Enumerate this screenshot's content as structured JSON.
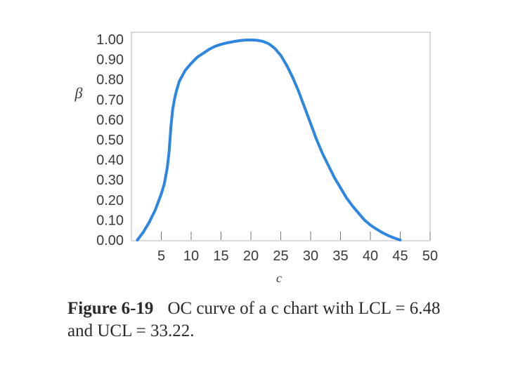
{
  "chart_data": {
    "type": "line",
    "title": "",
    "xlabel": "c",
    "ylabel": "β",
    "xlim": [
      0,
      50
    ],
    "ylim": [
      0,
      1
    ],
    "grid": false,
    "x_ticks": [
      "5",
      "10",
      "15",
      "20",
      "25",
      "30",
      "35",
      "40",
      "45",
      "50"
    ],
    "y_ticks": [
      "0.00",
      "0.10",
      "0.20",
      "0.30",
      "0.40",
      "0.50",
      "0.60",
      "0.70",
      "0.80",
      "0.90",
      "1.00"
    ],
    "line_color": "#2e86e0",
    "series": [
      {
        "x": [
          1,
          2,
          3,
          4,
          5,
          5.5,
          6,
          6.3,
          6.6,
          6.9,
          7.2,
          7.5,
          8,
          9,
          10,
          11,
          12,
          13,
          14,
          15,
          16,
          17,
          18,
          19,
          20,
          21,
          22,
          23,
          24,
          25,
          26,
          27,
          28,
          29,
          30,
          31,
          32,
          33,
          34,
          35,
          36,
          37,
          38,
          39,
          40,
          41,
          42,
          43,
          44,
          45
        ],
        "y": [
          0.0,
          0.04,
          0.09,
          0.15,
          0.23,
          0.28,
          0.36,
          0.44,
          0.56,
          0.65,
          0.7,
          0.74,
          0.79,
          0.845,
          0.88,
          0.91,
          0.93,
          0.95,
          0.965,
          0.975,
          0.982,
          0.988,
          0.993,
          0.996,
          0.997,
          0.995,
          0.99,
          0.978,
          0.955,
          0.92,
          0.87,
          0.81,
          0.74,
          0.66,
          0.58,
          0.5,
          0.43,
          0.37,
          0.31,
          0.26,
          0.21,
          0.17,
          0.135,
          0.1,
          0.075,
          0.055,
          0.037,
          0.022,
          0.01,
          0.0
        ]
      }
    ]
  },
  "caption": {
    "figure_label": "Figure 6-19",
    "text": "OC curve of a c chart with LCL = 6.48 and UCL = 33.22."
  }
}
